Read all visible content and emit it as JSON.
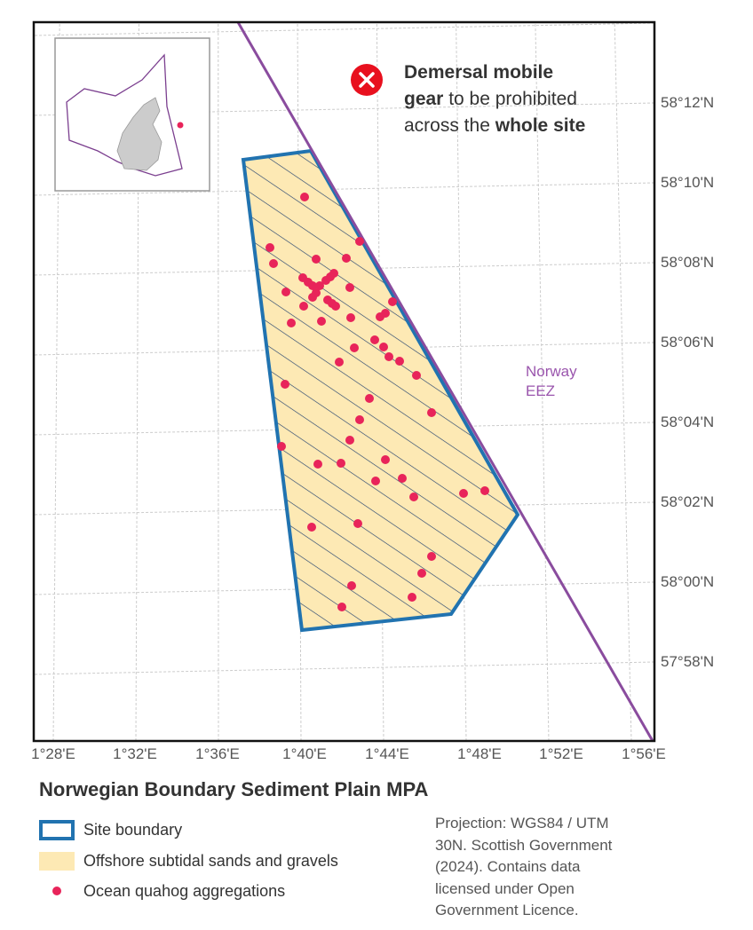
{
  "map": {
    "title": "Norwegian Boundary Sediment Plain MPA",
    "x_labels": [
      "1°28'E",
      "1°32'E",
      "1°36'E",
      "1°40'E",
      "1°44'E",
      "1°48'E",
      "1°52'E",
      "1°56'E"
    ],
    "y_labels": [
      "58°12'N",
      "58°10'N",
      "58°08'N",
      "58°06'N",
      "58°04'N",
      "58°02'N",
      "58°00'N",
      "57°58'N"
    ],
    "callout": {
      "line1": "Demersal mobile",
      "line2_bold": "gear",
      "line2": "to be prohibited",
      "line3": "across the",
      "line3_bold": "whole site"
    },
    "eez_label": [
      "Norway",
      "EEZ"
    ],
    "legend": [
      "Site boundary",
      "Offshore subtidal sands and gravels",
      "Ocean quahog aggregations"
    ],
    "note": [
      "Projection: WGS84 / UTM",
      "30N. Scottish Government",
      "(2024). Contains data",
      "licensed under Open",
      "Government Licence."
    ]
  }
}
